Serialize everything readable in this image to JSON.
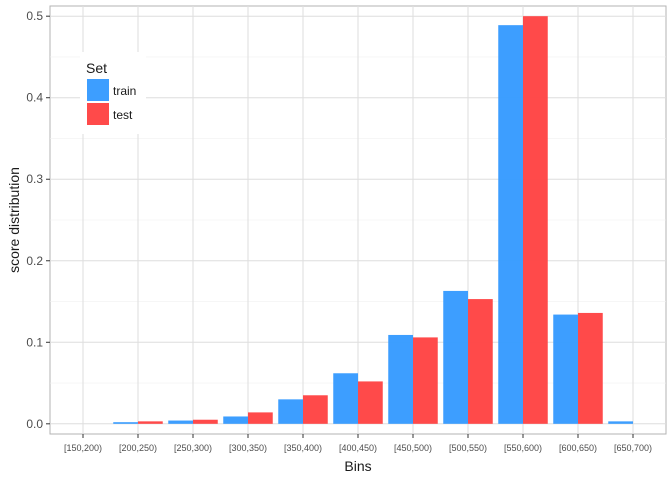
{
  "chart_data": {
    "type": "bar",
    "title": "",
    "xlabel": "Bins",
    "ylabel": "score distribution",
    "categories": [
      "[150,200)",
      "[200,250)",
      "[250,300)",
      "[300,350)",
      "[350,400)",
      "[400,450)",
      "[450,500)",
      "[500,550)",
      "[550,600)",
      "[600,650)",
      "[650,700)"
    ],
    "series": [
      {
        "name": "train",
        "color": "#3399ff",
        "values": [
          0.0,
          0.002,
          0.004,
          0.009,
          0.03,
          0.062,
          0.109,
          0.163,
          0.489,
          0.134,
          0.003
        ]
      },
      {
        "name": "test",
        "color": "#ff4040",
        "values": [
          0.0,
          0.003,
          0.005,
          0.014,
          0.035,
          0.052,
          0.106,
          0.153,
          0.5,
          0.136,
          0.0
        ]
      }
    ],
    "ylim": [
      -0.0125,
      0.5125
    ],
    "yticks": [
      0.0,
      0.1,
      0.2,
      0.3,
      0.4,
      0.5
    ],
    "ytick_labels": [
      "0.0",
      "0.1",
      "0.2",
      "0.3",
      "0.4",
      "0.5"
    ],
    "grid": true,
    "legend": {
      "title": "Set",
      "position": "top-left-inside"
    }
  }
}
